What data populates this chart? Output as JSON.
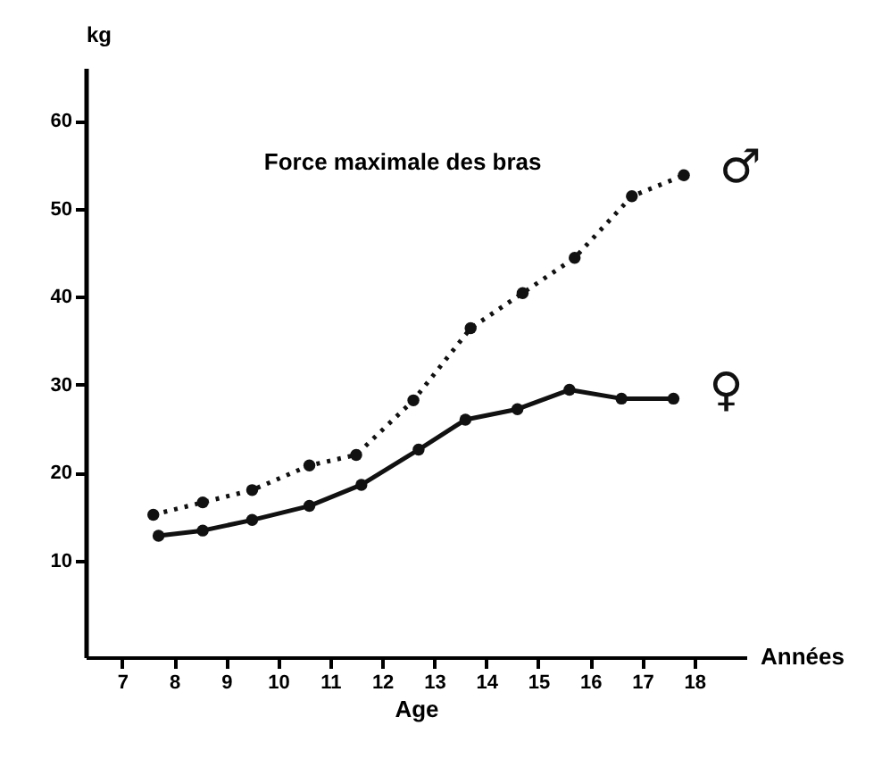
{
  "chart_data": {
    "type": "line",
    "title": "Force maximale des bras",
    "xlabel": "Age",
    "ylabel": "kg",
    "annotations": [
      "Années"
    ],
    "xlim": [
      6.3,
      19
    ],
    "xticks": [
      7,
      8,
      9,
      10,
      11,
      12,
      13,
      14,
      15,
      16,
      17,
      18
    ],
    "ylim": [
      -1,
      66
    ],
    "yticks": [
      10,
      20,
      30,
      40,
      50,
      60
    ],
    "grid": false,
    "legend": false,
    "marker": "circle",
    "series": [
      {
        "name": "♂",
        "color": "#111111",
        "line_style": "dotted",
        "x": [
          7.6,
          8.55,
          9.5,
          10.6,
          11.5,
          12.6,
          13.7,
          14.7,
          15.7,
          16.8,
          17.8
        ],
        "values": [
          15.2,
          16.6,
          18,
          20.8,
          22,
          28.2,
          36.4,
          40.4,
          44.4,
          51.4,
          53.8
        ]
      },
      {
        "name": "♀",
        "color": "#111111",
        "line_style": "solid",
        "x": [
          7.7,
          8.55,
          9.5,
          10.6,
          11.6,
          12.7,
          13.6,
          14.6,
          15.6,
          16.6,
          17.6
        ],
        "values": [
          12.8,
          13.4,
          14.6,
          16.2,
          18.6,
          22.6,
          26,
          27.2,
          29.4,
          28.4,
          28.4
        ]
      }
    ]
  }
}
